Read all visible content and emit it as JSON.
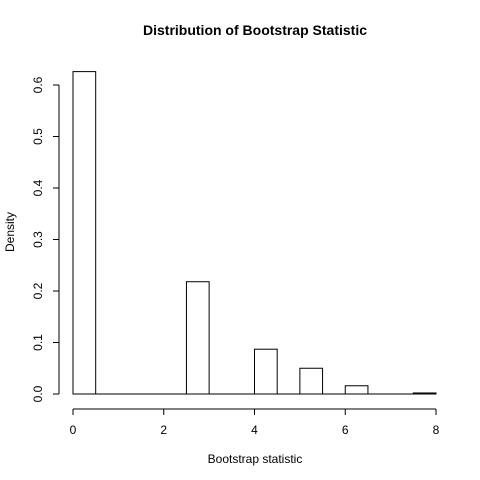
{
  "chart_data": {
    "type": "bar",
    "title": "Distribution of Bootstrap Statistic",
    "xlabel": "Bootstrap statistic",
    "ylabel": "Density",
    "xlim": [
      0,
      8
    ],
    "ylim": [
      0,
      0.62
    ],
    "x_ticks": [
      0,
      2,
      4,
      6,
      8
    ],
    "y_ticks": [
      0.0,
      0.1,
      0.2,
      0.3,
      0.4,
      0.5,
      0.6
    ],
    "y_tick_labels": [
      "0.0",
      "0.1",
      "0.2",
      "0.3",
      "0.4",
      "0.5",
      "0.6"
    ],
    "bin_width": 0.5,
    "bins": [
      {
        "x0": 0.0,
        "x1": 0.5,
        "density": 0.626
      },
      {
        "x0": 0.5,
        "x1": 1.0,
        "density": 0.0
      },
      {
        "x0": 1.0,
        "x1": 1.5,
        "density": 0.0
      },
      {
        "x0": 1.5,
        "x1": 2.0,
        "density": 0.0
      },
      {
        "x0": 2.0,
        "x1": 2.5,
        "density": 0.0
      },
      {
        "x0": 2.5,
        "x1": 3.0,
        "density": 0.218
      },
      {
        "x0": 3.0,
        "x1": 3.5,
        "density": 0.0
      },
      {
        "x0": 3.5,
        "x1": 4.0,
        "density": 0.0
      },
      {
        "x0": 4.0,
        "x1": 4.5,
        "density": 0.087
      },
      {
        "x0": 4.5,
        "x1": 5.0,
        "density": 0.0
      },
      {
        "x0": 5.0,
        "x1": 5.5,
        "density": 0.05
      },
      {
        "x0": 5.5,
        "x1": 6.0,
        "density": 0.0
      },
      {
        "x0": 6.0,
        "x1": 6.5,
        "density": 0.016
      },
      {
        "x0": 6.5,
        "x1": 7.0,
        "density": 0.0
      },
      {
        "x0": 7.0,
        "x1": 7.5,
        "density": 0.0
      },
      {
        "x0": 7.5,
        "x1": 8.0,
        "density": 0.002
      }
    ],
    "grid": false,
    "legend": "none",
    "colors": {
      "bar_fill": "#ffffff",
      "bar_stroke": "#000000",
      "axis": "#000000",
      "text": "#000000"
    }
  }
}
